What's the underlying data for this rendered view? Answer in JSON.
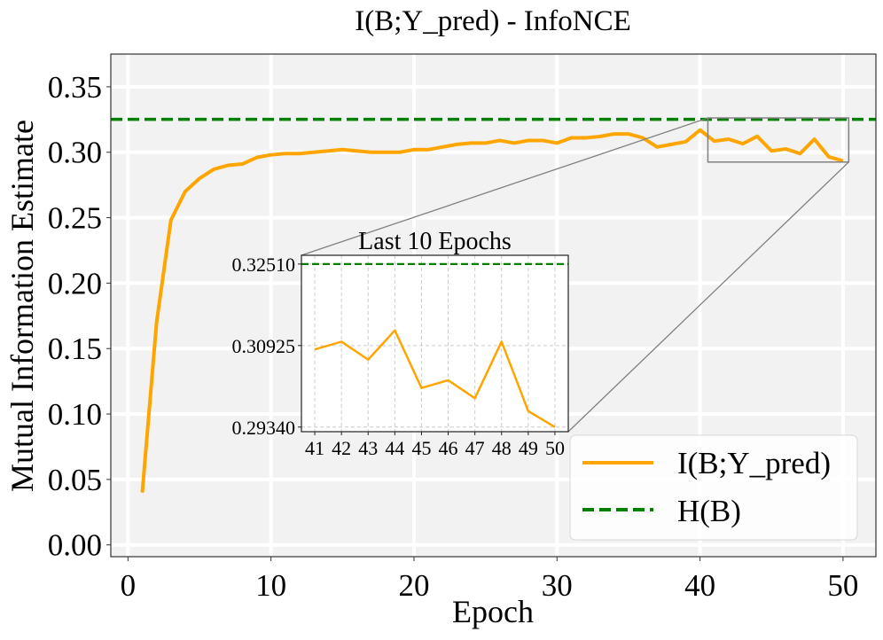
{
  "chart_data": {
    "type": "line",
    "title": "I(B;Y_pred) - InfoNCE",
    "xlabel": "Epoch",
    "ylabel": "Mutual Information Estimate",
    "xlim": [
      -1.2,
      52.3
    ],
    "ylim": [
      -0.009,
      0.375
    ],
    "xticks": [
      0,
      10,
      20,
      30,
      40,
      50
    ],
    "yticks": [
      0.0,
      0.05,
      0.1,
      0.15,
      0.2,
      0.25,
      0.3,
      0.35
    ],
    "ytick_labels": [
      "0.00",
      "0.05",
      "0.10",
      "0.15",
      "0.20",
      "0.25",
      "0.30",
      "0.35"
    ],
    "grid": true,
    "colors": {
      "mi": "#FFA500",
      "entropy": "#008000",
      "plot_bg": "#F2F2F2",
      "grid": "#FFFFFF",
      "zoom_box": "#808080"
    },
    "series": [
      {
        "name": "I(B;Y_pred)",
        "style": "solid",
        "x": [
          1,
          2,
          3,
          4,
          5,
          6,
          7,
          8,
          9,
          10,
          11,
          12,
          13,
          14,
          15,
          16,
          17,
          18,
          19,
          20,
          21,
          22,
          23,
          24,
          25,
          26,
          27,
          28,
          29,
          30,
          31,
          32,
          33,
          34,
          35,
          36,
          37,
          38,
          39,
          40,
          41,
          42,
          43,
          44,
          45,
          46,
          47,
          48,
          49,
          50
        ],
        "values": [
          0.04,
          0.17,
          0.248,
          0.27,
          0.28,
          0.287,
          0.29,
          0.291,
          0.296,
          0.298,
          0.299,
          0.299,
          0.3,
          0.301,
          0.302,
          0.301,
          0.3,
          0.3,
          0.3,
          0.302,
          0.302,
          0.304,
          0.306,
          0.307,
          0.307,
          0.309,
          0.307,
          0.309,
          0.309,
          0.307,
          0.311,
          0.311,
          0.312,
          0.314,
          0.314,
          0.311,
          0.304,
          0.306,
          0.308,
          0.317,
          0.3085,
          0.31,
          0.3065,
          0.3122,
          0.301,
          0.3025,
          0.299,
          0.31,
          0.2965,
          0.2934
        ]
      },
      {
        "name": "H(B)",
        "style": "dashed",
        "constant": 0.3251
      }
    ],
    "legend": {
      "position": "lower-right",
      "entries": [
        "I(B;Y_pred)",
        "H(B)"
      ]
    },
    "inset": {
      "title": "Last 10 Epochs",
      "xticks": [
        41,
        42,
        43,
        44,
        45,
        46,
        47,
        48,
        49,
        50
      ],
      "ytick_labels": [
        "0.32510",
        "0.30925",
        "0.29340"
      ],
      "ytick_values": [
        0.3251,
        0.30925,
        0.2934
      ],
      "xlim": [
        40.5,
        50.5
      ],
      "ylim": [
        0.2925,
        0.3268
      ],
      "zoom_region": {
        "x": [
          40.55,
          50.4
        ],
        "y": [
          0.2925,
          0.3262
        ]
      }
    }
  }
}
